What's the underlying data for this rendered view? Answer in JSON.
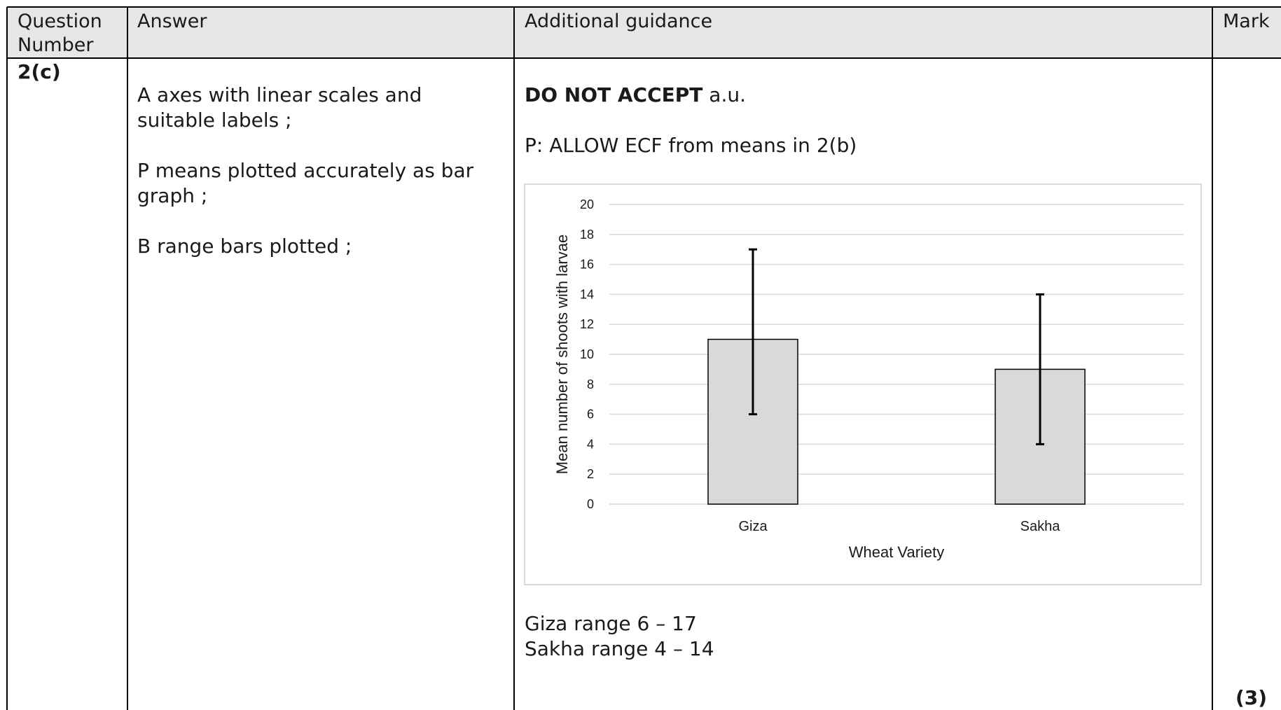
{
  "header": {
    "question_number": "Question\nNumber",
    "question_line1": "Question",
    "question_line2": "Number",
    "answer": "Answer",
    "guidance": "Additional guidance",
    "mark": "Mark"
  },
  "row": {
    "question": "2(c)",
    "answer_points": [
      "A  axes with linear scales and suitable labels ;",
      "P  means plotted accurately as bar graph ;",
      "B  range bars plotted ;"
    ],
    "guidance": {
      "do_not_accept_bold": "DO NOT ACCEPT",
      "do_not_accept_rest": " a.u.",
      "ecf_note": "P: ALLOW ECF from means in 2(b)",
      "range_lines": [
        "Giza range 6 – 17",
        "Sakha range 4 – 14"
      ]
    },
    "mark": "(3)"
  },
  "chart_data": {
    "type": "bar",
    "categories": [
      "Giza",
      "Sakha"
    ],
    "values": [
      11,
      9
    ],
    "error_ranges": [
      [
        6,
        17
      ],
      [
        4,
        14
      ]
    ],
    "xlabel": "Wheat Variety",
    "ylabel": "Mean number of shoots with larvae",
    "ylim": [
      0,
      20
    ],
    "yticks": [
      0,
      2,
      4,
      6,
      8,
      10,
      12,
      14,
      16,
      18,
      20
    ],
    "grid": true,
    "bar_color": "#d9d9d9",
    "bar_edge_color": "#000000",
    "gridline_color": "#d9d9d9"
  }
}
